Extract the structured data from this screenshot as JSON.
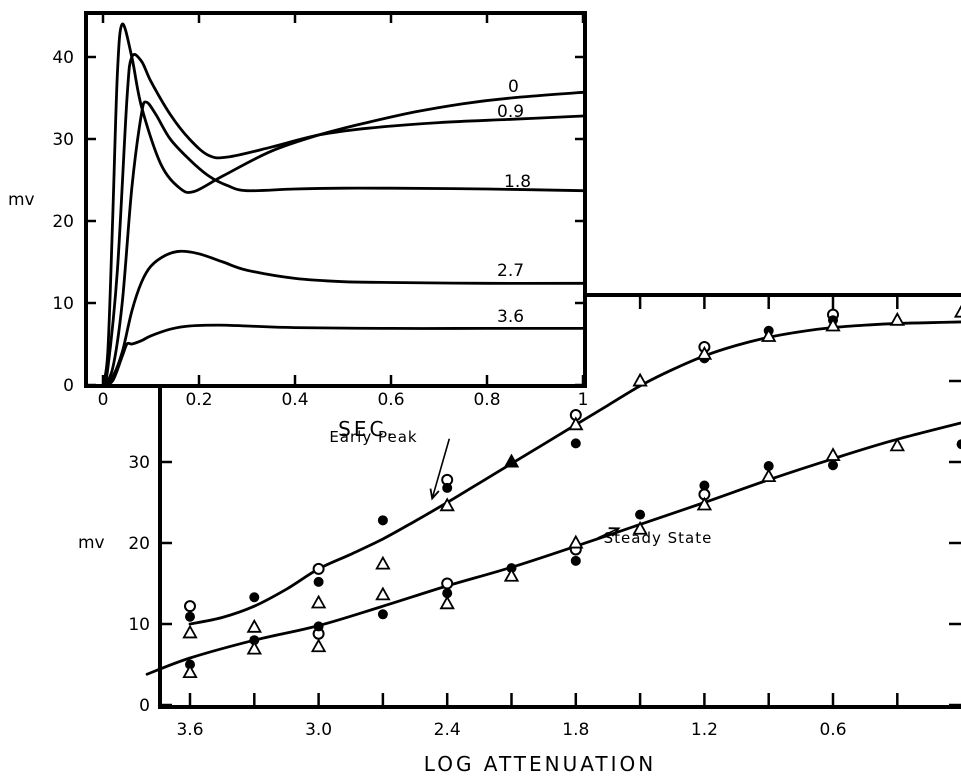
{
  "chart_data": [
    {
      "type": "line",
      "panel": "inset",
      "xlabel": "SEC.",
      "ylabel": "mv",
      "xlim": [
        -0.05,
        1.0
      ],
      "ylim": [
        0,
        45
      ],
      "xticks": [
        0,
        0.2,
        0.4,
        0.6,
        0.8,
        1.0
      ],
      "xtick_labels": [
        "0",
        "0.2",
        "0.4",
        "0.6",
        "0.8",
        "1"
      ],
      "yticks": [
        0,
        10,
        20,
        30,
        40
      ],
      "ytick_labels": [
        "0",
        "10",
        "20",
        "30",
        "40"
      ],
      "series": [
        {
          "name": "0",
          "x": [
            0,
            0.01,
            0.02,
            0.03,
            0.04,
            0.06,
            0.08,
            0.12,
            0.16,
            0.19,
            0.25,
            0.35,
            0.45,
            0.55,
            0.65,
            0.75,
            0.85,
            1.0
          ],
          "values": [
            0,
            4,
            20,
            38,
            44,
            40,
            34,
            27,
            24,
            23.6,
            25.5,
            28.5,
            30.5,
            32,
            33.3,
            34.3,
            35,
            35.7
          ]
        },
        {
          "name": "0.9",
          "x": [
            0,
            0.01,
            0.03,
            0.05,
            0.06,
            0.08,
            0.1,
            0.14,
            0.18,
            0.22,
            0.26,
            0.35,
            0.45,
            0.55,
            0.7,
            0.85,
            1.0
          ],
          "values": [
            0,
            2,
            14,
            35,
            40,
            39.5,
            37,
            33,
            30,
            28,
            27.8,
            29,
            30.5,
            31.3,
            32,
            32.4,
            32.8
          ]
        },
        {
          "name": "1.8",
          "x": [
            0,
            0.02,
            0.04,
            0.06,
            0.08,
            0.09,
            0.11,
            0.14,
            0.18,
            0.22,
            0.26,
            0.3,
            0.4,
            0.5,
            0.6,
            0.8,
            1.0
          ],
          "values": [
            0,
            2,
            10,
            24,
            33,
            34.5,
            33,
            30,
            27.5,
            25.5,
            24.3,
            23.7,
            23.9,
            24,
            24,
            23.9,
            23.7
          ]
        },
        {
          "name": "2.7",
          "x": [
            0,
            0.02,
            0.04,
            0.06,
            0.08,
            0.1,
            0.13,
            0.16,
            0.2,
            0.25,
            0.3,
            0.4,
            0.5,
            0.6,
            0.8,
            1.0
          ],
          "values": [
            0,
            1,
            4,
            9,
            12.5,
            14.5,
            15.8,
            16.3,
            16,
            15,
            14,
            13,
            12.6,
            12.5,
            12.4,
            12.4
          ]
        },
        {
          "name": "3.6",
          "x": [
            0,
            0.02,
            0.04,
            0.05,
            0.06,
            0.08,
            0.1,
            0.14,
            0.18,
            0.24,
            0.3,
            0.4,
            0.6,
            0.8,
            1.0
          ],
          "values": [
            0,
            0.5,
            3.5,
            5,
            5,
            5.4,
            6,
            6.8,
            7.2,
            7.3,
            7.2,
            7,
            6.9,
            6.9,
            6.9
          ]
        }
      ]
    },
    {
      "type": "scatter",
      "panel": "main",
      "xlabel": "LOG  ATTENUATION",
      "ylabel": "mv",
      "xlim": [
        3.8,
        -0.1
      ],
      "ylim": [
        0,
        45
      ],
      "xticks": [
        3.6,
        3.3,
        3.0,
        2.7,
        2.4,
        2.1,
        1.8,
        1.5,
        1.2,
        0.9,
        0.6,
        0.3
      ],
      "xtick_labels": [
        "3.6",
        "",
        "3.0",
        "",
        "2.4",
        "",
        "1.8",
        "",
        "1.2",
        "",
        "0.6",
        ""
      ],
      "yticks": [
        0,
        10,
        20,
        30,
        40
      ],
      "ytick_labels": [
        "0",
        "10",
        "20",
        "30",
        ""
      ],
      "annotations": [
        {
          "text": "Early Peak",
          "x": 2.95,
          "y": 32.5,
          "arrow_to": [
            2.47,
            25.5
          ]
        },
        {
          "text": "Steady State",
          "x": 1.67,
          "y": 20,
          "arrow_to": [
            1.6,
            21.8
          ]
        }
      ],
      "series": [
        {
          "name": "Early Peak",
          "kind": "curve",
          "x": [
            3.6,
            3.45,
            3.3,
            3.15,
            3.0,
            2.85,
            2.7,
            2.55,
            2.4,
            2.25,
            2.1,
            1.95,
            1.8,
            1.65,
            1.5,
            1.35,
            1.2,
            1.05,
            0.9,
            0.75,
            0.6,
            0.45,
            0.3,
            0.15,
            0.0
          ],
          "values": [
            10,
            10.8,
            12.2,
            14.3,
            16.8,
            18.6,
            20.5,
            22.7,
            25,
            27.4,
            29.8,
            32.2,
            34.6,
            37,
            39.4,
            41.4,
            43.1,
            44.4,
            45.4,
            46.1,
            46.6,
            46.9,
            47.1,
            47.2,
            47.3
          ]
        },
        {
          "name": "Steady State",
          "kind": "curve",
          "x": [
            3.8,
            3.6,
            3.3,
            3.0,
            2.7,
            2.4,
            2.1,
            1.8,
            1.5,
            1.2,
            0.9,
            0.6,
            0.3,
            -0.1
          ],
          "values": [
            3.8,
            5.8,
            8,
            9.8,
            12.2,
            14.7,
            17,
            19.6,
            22.3,
            25,
            27.8,
            30.4,
            32.8,
            35.5
          ]
        },
        {
          "name": "open-circle",
          "kind": "marker",
          "x": [
            3.6,
            3.0,
            2.4,
            1.8,
            1.2,
            0.6,
            3.0,
            2.4,
            1.8,
            1.2
          ],
          "values": [
            12.2,
            16.8,
            27.8,
            35.8,
            44.2,
            48.2,
            8.8,
            15,
            19.2,
            26
          ]
        },
        {
          "name": "filled-circle",
          "kind": "marker",
          "x": [
            3.6,
            3.3,
            3.0,
            2.7,
            2.4,
            1.8,
            1.2,
            0.9,
            0.6,
            3.6,
            3.3,
            3.0,
            2.7,
            2.4,
            2.1,
            1.8,
            1.5,
            1.2,
            0.9,
            0.6,
            0.0
          ],
          "values": [
            10.9,
            13.3,
            15.2,
            22.8,
            26.8,
            32.3,
            42.8,
            46.2,
            47.5,
            5,
            8,
            9.7,
            11.2,
            13.8,
            16.9,
            17.8,
            23.5,
            27.1,
            29.5,
            29.6,
            32.2
          ]
        },
        {
          "name": "open-triangle",
          "kind": "marker",
          "x": [
            3.6,
            3.3,
            3.0,
            2.7,
            2.4,
            1.8,
            1.5,
            1.2,
            0.9,
            0.6,
            0.3,
            0.0,
            3.6,
            3.3,
            3.0,
            2.7,
            2.4,
            2.1,
            1.8,
            1.5,
            1.2,
            0.9,
            0.6,
            0.3
          ],
          "values": [
            8.9,
            9.6,
            12.6,
            17.4,
            24.6,
            34.6,
            40,
            43.3,
            45.5,
            46.8,
            47.5,
            48.5,
            4,
            6.9,
            7.2,
            13.6,
            12.5,
            15.9,
            20,
            21.7,
            24.7,
            28.2,
            30.8,
            32
          ]
        },
        {
          "name": "filled-triangle",
          "kind": "marker",
          "x": [
            2.1
          ],
          "values": [
            30
          ]
        }
      ]
    }
  ]
}
